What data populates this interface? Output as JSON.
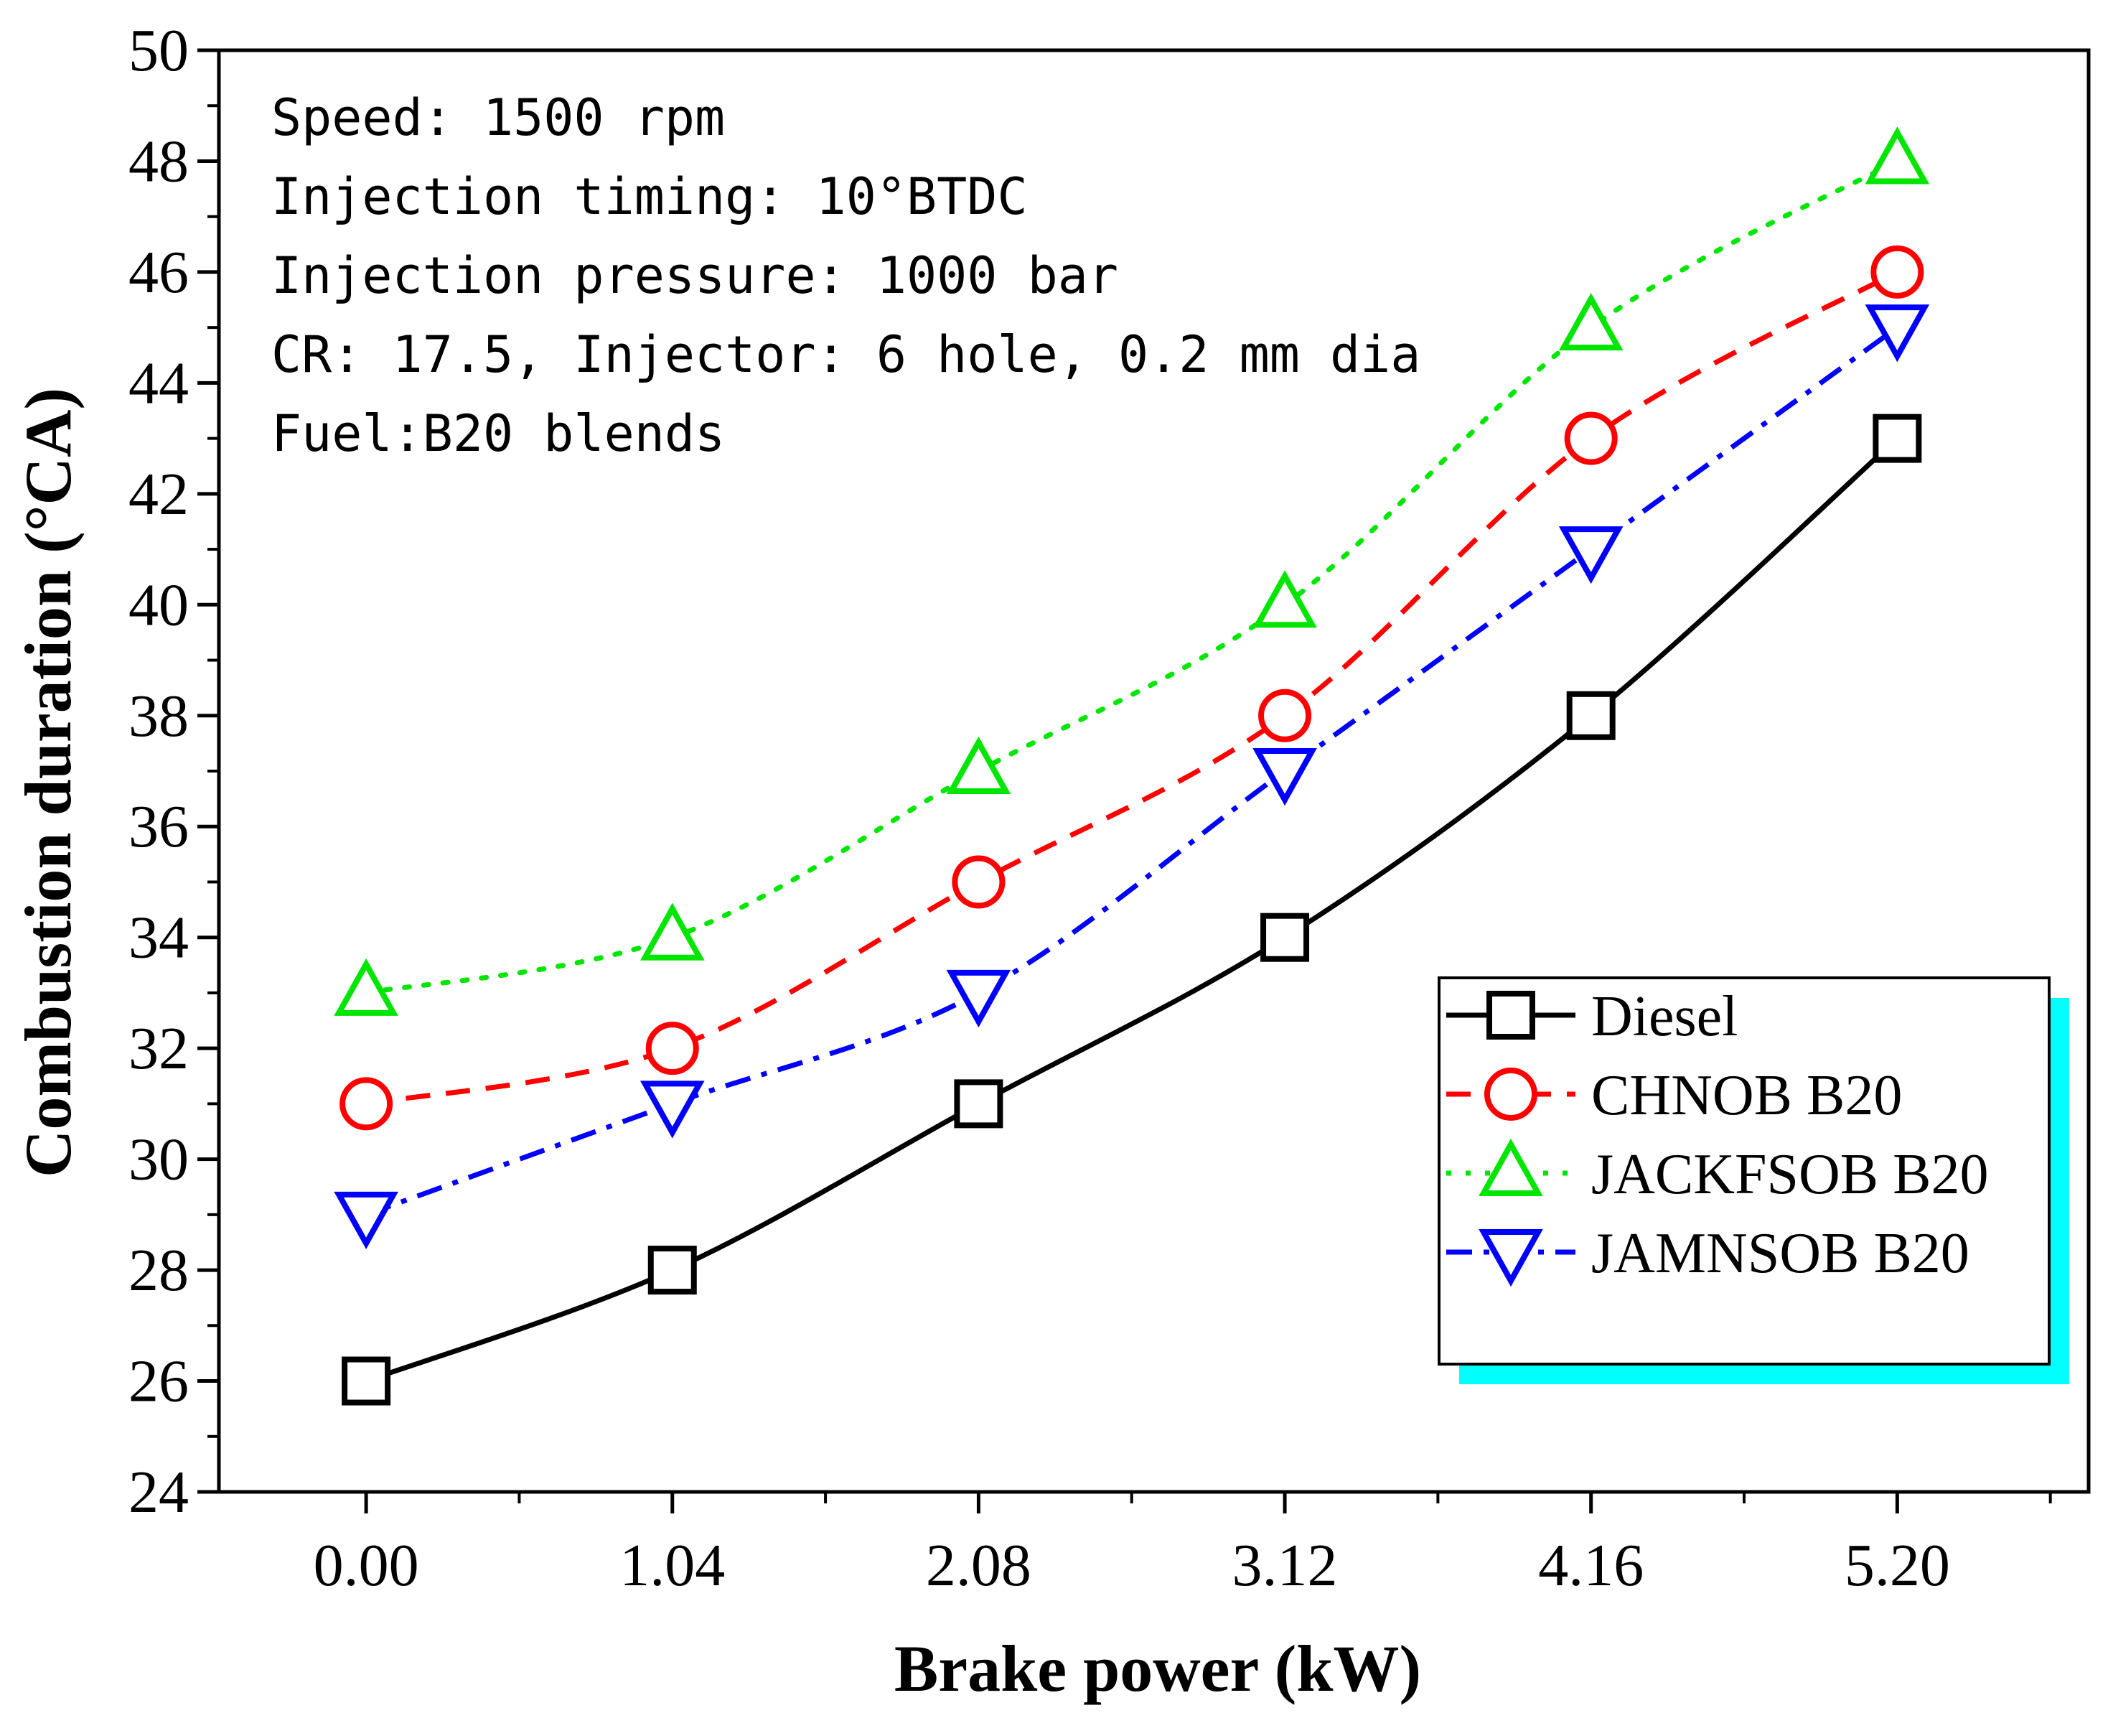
{
  "chart_data": {
    "type": "line",
    "title": "",
    "xlabel": "Brake power (kW)",
    "ylabel": "Combustion duration (°CA)",
    "categories": [
      "0.00",
      "1.04",
      "2.08",
      "3.12",
      "4.16",
      "5.20"
    ],
    "x": [
      0.0,
      1.04,
      2.08,
      3.12,
      4.16,
      5.2
    ],
    "xlim": [
      -0.5,
      5.85
    ],
    "ylim": [
      24,
      50
    ],
    "yticks": [
      24,
      26,
      28,
      30,
      32,
      34,
      36,
      38,
      40,
      42,
      44,
      46,
      48,
      50
    ],
    "legend_position": "bottom-right",
    "annotations": [
      "Speed: 1500 rpm",
      "Injection timing: 10°BTDC",
      "Injection pressure: 1000 bar",
      "CR: 17.5, Injector: 6 hole, 0.2 mm dia",
      "Fuel:B20 blends"
    ],
    "series": [
      {
        "name": "Diesel",
        "color": "#000000",
        "marker": "square",
        "line": "solid",
        "values": [
          26,
          28,
          31,
          34,
          38,
          43
        ]
      },
      {
        "name": "CHNOB B20",
        "color": "#ff0000",
        "marker": "circle",
        "line": "dash",
        "values": [
          31,
          32,
          35,
          38,
          43,
          46
        ]
      },
      {
        "name": "JACKFSOB B20",
        "color": "#00e600",
        "marker": "triangle-up",
        "line": "dot",
        "values": [
          33,
          34,
          37,
          40,
          45,
          48
        ]
      },
      {
        "name": "JAMNSOB B20",
        "color": "#0000ff",
        "marker": "triangle-down",
        "line": "dashdot",
        "values": [
          29,
          31,
          33,
          37,
          41,
          45
        ]
      }
    ],
    "legend_shadow_color": "#00ffff"
  }
}
